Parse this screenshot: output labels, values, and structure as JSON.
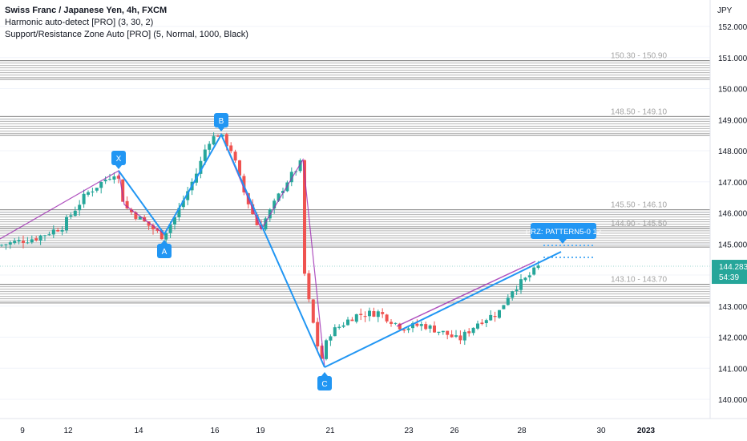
{
  "chart_data": {
    "type": "candlestick",
    "title": "Swiss Franc / Japanese Yen, 4h, FXCM",
    "indicators": [
      "Harmonic auto-detect [PRO] (3, 30, 2)",
      "Support/Resistance Zone Auto [PRO] (5, Normal, 1000, Black)"
    ],
    "currency": "JPY",
    "y_range": [
      139.6,
      152.5
    ],
    "y_ticks": [
      "152.000",
      "151.000",
      "150.000",
      "149.000",
      "148.000",
      "147.000",
      "146.000",
      "145.000",
      "144.000",
      "143.000",
      "142.000",
      "141.000",
      "140.000"
    ],
    "x_ticks": [
      "9",
      "12",
      "14",
      "16",
      "19",
      "21",
      "23",
      "26",
      "28",
      "30",
      "2023"
    ],
    "current_price": "144.283",
    "countdown": "54:39",
    "zones": [
      {
        "label": "150.30 - 150.90",
        "low": 150.3,
        "high": 150.9
      },
      {
        "label": "148.50 - 149.10",
        "low": 148.5,
        "high": 149.1
      },
      {
        "label": "145.50 - 146.10",
        "low": 145.5,
        "high": 146.1
      },
      {
        "label": "144.90 - 145.50",
        "low": 144.9,
        "high": 145.5
      },
      {
        "label": "143.10 - 143.70",
        "low": 143.1,
        "high": 143.7
      }
    ],
    "pattern_points": [
      {
        "label": "X",
        "price": 147.35
      },
      {
        "label": "A",
        "price": 145.25
      },
      {
        "label": "B",
        "price": 148.55
      },
      {
        "label": "C",
        "price": 141.05
      }
    ],
    "prz_label": "PRZ: PATTERN5-0 12",
    "colors": {
      "up": "#26a69a",
      "down": "#ef5350",
      "pattern": "#2196f3",
      "trend": "#9c27b0",
      "zone": "#9e9e9e"
    }
  }
}
